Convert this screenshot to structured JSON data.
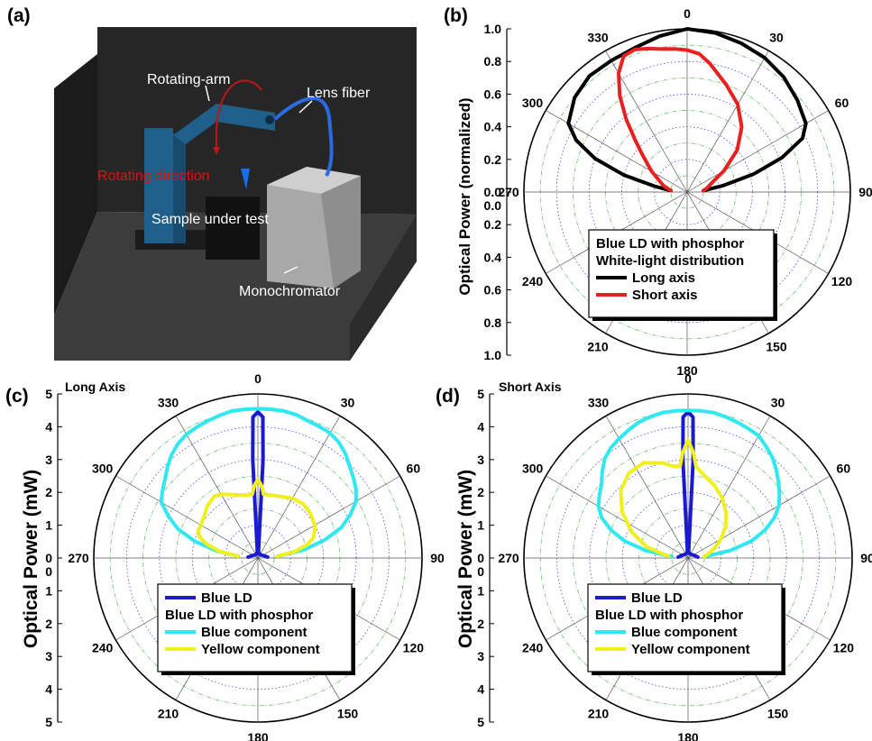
{
  "panels": {
    "a": {
      "label": "(a)",
      "annotations": {
        "rotating_arm": "Rotating-arm",
        "lens_fiber": "Lens fiber",
        "rotating_direction": "Rotating direction",
        "sample": "Sample under test",
        "monochromator": "Monochromator"
      },
      "colors": {
        "wall": "#222222",
        "floor": "#3a3a3a",
        "arm": "#1f5f8a",
        "fiber": "#2a6be0",
        "mono": "#bdbdbd",
        "arrow_red": "#e01010"
      }
    },
    "b": {
      "label": "(b)",
      "ylabel": "Optical Power (normalized)"
    },
    "c": {
      "label": "(c)",
      "title": "Long Axis",
      "ylabel": "Optical Power (mW)"
    },
    "d": {
      "label": "(d)",
      "title": "Short Axis",
      "ylabel": "Optical Power (mW)"
    }
  },
  "chart_data": [
    {
      "panel": "b",
      "type": "line",
      "coordinate_system": "polar",
      "angle_direction": "clockwise",
      "angle_zero": "top",
      "angle_ticks": [
        "0",
        "30",
        "60",
        "90",
        "120",
        "150",
        "180",
        "210",
        "240",
        "270",
        "300",
        "330"
      ],
      "radial_ticks": [
        "0.0",
        "0.2",
        "0.4",
        "0.6",
        "0.8",
        "1.0"
      ],
      "rlim": [
        0,
        1.0
      ],
      "legend_title": [
        "Blue LD with phosphor",
        "White-light distribution"
      ],
      "legend_position": "bottom-center",
      "series": [
        {
          "name": "Long axis",
          "color": "#000000",
          "points": [
            [
              -85,
              0.1
            ],
            [
              -80,
              0.2
            ],
            [
              -75,
              0.4
            ],
            [
              -70,
              0.6
            ],
            [
              -65,
              0.75
            ],
            [
              -60,
              0.84
            ],
            [
              -50,
              0.9
            ],
            [
              -40,
              0.93
            ],
            [
              -30,
              0.93
            ],
            [
              -20,
              0.94
            ],
            [
              -10,
              0.97
            ],
            [
              0,
              1.0
            ],
            [
              10,
              0.99
            ],
            [
              20,
              0.97
            ],
            [
              30,
              0.95
            ],
            [
              40,
              0.92
            ],
            [
              50,
              0.88
            ],
            [
              60,
              0.84
            ],
            [
              65,
              0.78
            ],
            [
              70,
              0.62
            ],
            [
              75,
              0.42
            ],
            [
              80,
              0.22
            ],
            [
              85,
              0.1
            ]
          ]
        },
        {
          "name": "Short axis",
          "color": "#e82020",
          "points": [
            [
              -85,
              0.1
            ],
            [
              -75,
              0.15
            ],
            [
              -60,
              0.25
            ],
            [
              -50,
              0.36
            ],
            [
              -45,
              0.45
            ],
            [
              -40,
              0.58
            ],
            [
              -35,
              0.72
            ],
            [
              -30,
              0.84
            ],
            [
              -25,
              0.92
            ],
            [
              -20,
              0.93
            ],
            [
              -15,
              0.91
            ],
            [
              -10,
              0.89
            ],
            [
              -5,
              0.88
            ],
            [
              0,
              0.87
            ],
            [
              5,
              0.85
            ],
            [
              10,
              0.8
            ],
            [
              20,
              0.7
            ],
            [
              30,
              0.62
            ],
            [
              40,
              0.52
            ],
            [
              50,
              0.4
            ],
            [
              60,
              0.26
            ],
            [
              70,
              0.16
            ],
            [
              80,
              0.12
            ],
            [
              85,
              0.1
            ]
          ]
        }
      ]
    },
    {
      "panel": "c",
      "type": "line",
      "coordinate_system": "polar",
      "angle_direction": "clockwise",
      "angle_zero": "top",
      "angle_ticks": [
        "0",
        "30",
        "60",
        "90",
        "120",
        "150",
        "180",
        "210",
        "240",
        "270",
        "300",
        "330"
      ],
      "radial_ticks": [
        "0",
        "1",
        "2",
        "3",
        "4",
        "5"
      ],
      "rlim": [
        0,
        5
      ],
      "legend_title": [
        "Blue LD with phosphor"
      ],
      "legend_position": "bottom-center",
      "series": [
        {
          "name": "Blue LD",
          "color": "#1a1ad0",
          "points": [
            [
              -85,
              0.3
            ],
            [
              -70,
              0.2
            ],
            [
              -30,
              0.12
            ],
            [
              -5,
              0.18
            ],
            [
              -3,
              3.0
            ],
            [
              -2,
              4.3
            ],
            [
              0,
              4.45
            ],
            [
              2,
              4.3
            ],
            [
              3,
              3.0
            ],
            [
              5,
              0.18
            ],
            [
              30,
              0.12
            ],
            [
              70,
              0.2
            ],
            [
              85,
              0.3
            ]
          ]
        },
        {
          "name": "Blue component",
          "color": "#30e8f0",
          "points": [
            [
              -85,
              0.6
            ],
            [
              -80,
              1.3
            ],
            [
              -75,
              2.0
            ],
            [
              -70,
              2.6
            ],
            [
              -65,
              3.0
            ],
            [
              -60,
              3.4
            ],
            [
              -55,
              3.55
            ],
            [
              -50,
              3.7
            ],
            [
              -45,
              3.9
            ],
            [
              -40,
              4.1
            ],
            [
              -35,
              4.25
            ],
            [
              -30,
              4.35
            ],
            [
              -25,
              4.4
            ],
            [
              -20,
              4.45
            ],
            [
              -15,
              4.5
            ],
            [
              -10,
              4.55
            ],
            [
              -5,
              4.55
            ],
            [
              0,
              4.55
            ],
            [
              5,
              4.55
            ],
            [
              10,
              4.55
            ],
            [
              15,
              4.52
            ],
            [
              20,
              4.45
            ],
            [
              25,
              4.42
            ],
            [
              30,
              4.4
            ],
            [
              35,
              4.3
            ],
            [
              40,
              4.15
            ],
            [
              45,
              3.95
            ],
            [
              50,
              3.8
            ],
            [
              55,
              3.65
            ],
            [
              60,
              3.45
            ],
            [
              65,
              3.1
            ],
            [
              70,
              2.7
            ],
            [
              75,
              2.1
            ],
            [
              80,
              1.4
            ],
            [
              85,
              0.6
            ]
          ]
        },
        {
          "name": "Yellow component",
          "color": "#f0f020",
          "points": [
            [
              -85,
              0.6
            ],
            [
              -80,
              1.2
            ],
            [
              -75,
              1.6
            ],
            [
              -70,
              1.9
            ],
            [
              -65,
              2.0
            ],
            [
              -60,
              2.0
            ],
            [
              -55,
              2.05
            ],
            [
              -50,
              2.1
            ],
            [
              -45,
              2.2
            ],
            [
              -40,
              2.25
            ],
            [
              -35,
              2.3
            ],
            [
              -30,
              2.25
            ],
            [
              -20,
              2.05
            ],
            [
              -10,
              1.95
            ],
            [
              -5,
              1.95
            ],
            [
              -3,
              2.2
            ],
            [
              0,
              2.4
            ],
            [
              3,
              2.2
            ],
            [
              5,
              1.95
            ],
            [
              10,
              1.95
            ],
            [
              20,
              2.0
            ],
            [
              30,
              2.1
            ],
            [
              40,
              2.15
            ],
            [
              50,
              2.1
            ],
            [
              60,
              2.0
            ],
            [
              65,
              1.9
            ],
            [
              70,
              1.8
            ],
            [
              75,
              1.55
            ],
            [
              80,
              1.15
            ],
            [
              85,
              0.6
            ]
          ]
        }
      ]
    },
    {
      "panel": "d",
      "type": "line",
      "coordinate_system": "polar",
      "angle_direction": "clockwise",
      "angle_zero": "top",
      "angle_ticks": [
        "0",
        "30",
        "60",
        "90",
        "120",
        "150",
        "180",
        "210",
        "240",
        "270",
        "300",
        "330"
      ],
      "radial_ticks": [
        "0",
        "1",
        "2",
        "3",
        "4",
        "5"
      ],
      "rlim": [
        0,
        5
      ],
      "legend_title": [
        "Blue LD with phosphor"
      ],
      "legend_position": "bottom-center",
      "series": [
        {
          "name": "Blue LD",
          "color": "#1a1ad0",
          "points": [
            [
              -85,
              0.3
            ],
            [
              -70,
              0.22
            ],
            [
              -30,
              0.14
            ],
            [
              -5,
              0.18
            ],
            [
              -3,
              3.0
            ],
            [
              -2,
              4.3
            ],
            [
              0,
              4.45
            ],
            [
              2,
              4.3
            ],
            [
              3,
              3.0
            ],
            [
              5,
              0.18
            ],
            [
              30,
              0.14
            ],
            [
              70,
              0.22
            ],
            [
              85,
              0.3
            ]
          ]
        },
        {
          "name": "Blue component",
          "color": "#30e8f0",
          "points": [
            [
              -85,
              0.5
            ],
            [
              -80,
              1.3
            ],
            [
              -75,
              2.0
            ],
            [
              -70,
              2.5
            ],
            [
              -65,
              2.9
            ],
            [
              -60,
              3.15
            ],
            [
              -55,
              3.3
            ],
            [
              -50,
              3.45
            ],
            [
              -45,
              3.7
            ],
            [
              -40,
              3.95
            ],
            [
              -35,
              4.1
            ],
            [
              -30,
              4.2
            ],
            [
              -25,
              4.3
            ],
            [
              -20,
              4.4
            ],
            [
              -15,
              4.45
            ],
            [
              -10,
              4.5
            ],
            [
              -5,
              4.5
            ],
            [
              0,
              4.5
            ],
            [
              5,
              4.5
            ],
            [
              10,
              4.5
            ],
            [
              15,
              4.45
            ],
            [
              20,
              4.4
            ],
            [
              25,
              4.35
            ],
            [
              30,
              4.3
            ],
            [
              35,
              4.15
            ],
            [
              40,
              4.0
            ],
            [
              45,
              3.8
            ],
            [
              50,
              3.6
            ],
            [
              55,
              3.4
            ],
            [
              60,
              3.2
            ],
            [
              65,
              2.9
            ],
            [
              70,
              2.5
            ],
            [
              75,
              2.0
            ],
            [
              80,
              1.3
            ],
            [
              85,
              0.5
            ]
          ]
        },
        {
          "name": "Yellow component",
          "color": "#f0f020",
          "points": [
            [
              -85,
              0.6
            ],
            [
              -75,
              1.3
            ],
            [
              -65,
              1.9
            ],
            [
              -55,
              2.45
            ],
            [
              -45,
              2.9
            ],
            [
              -35,
              3.15
            ],
            [
              -25,
              3.2
            ],
            [
              -15,
              3.0
            ],
            [
              -10,
              2.85
            ],
            [
              -5,
              2.8
            ],
            [
              -3,
              3.2
            ],
            [
              0,
              3.6
            ],
            [
              3,
              3.2
            ],
            [
              5,
              2.8
            ],
            [
              10,
              2.6
            ],
            [
              20,
              2.35
            ],
            [
              30,
              2.1
            ],
            [
              40,
              1.8
            ],
            [
              50,
              1.5
            ],
            [
              60,
              1.15
            ],
            [
              70,
              0.85
            ],
            [
              80,
              0.6
            ],
            [
              85,
              0.5
            ]
          ]
        }
      ]
    }
  ]
}
